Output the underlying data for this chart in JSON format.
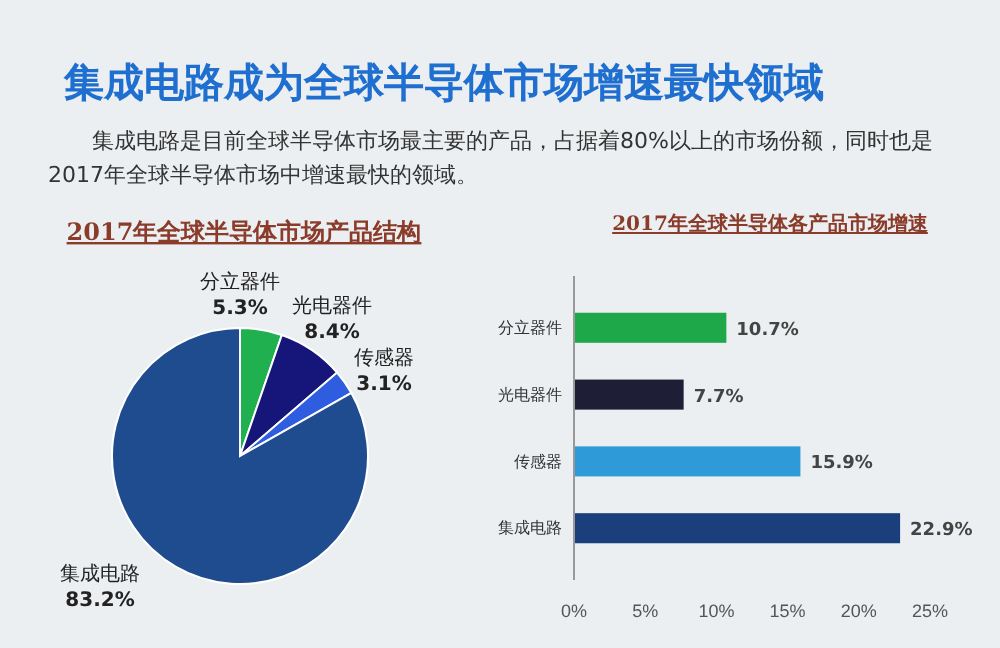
{
  "chart_data": [
    {
      "type": "other",
      "title": "集成电路成为全球半导体市场增速最快领域",
      "annotations": [
        "集成电路是目前全球半导体市场最主要的产品，占据着80%以上的市场份额，同时也是2017年全球半导体市场中增速最快的领域。"
      ]
    },
    {
      "type": "pie",
      "title": "2017年全球半导体市场产品结构",
      "categories": [
        "分立器件",
        "光电器件",
        "传感器",
        "集成电路"
      ],
      "values": [
        5.3,
        8.4,
        3.1,
        83.2
      ],
      "colors": [
        "#21b04f",
        "#16167a",
        "#2f5de0",
        "#1f4c8e"
      ],
      "value_labels": [
        "5.3%",
        "8.4%",
        "3.1%",
        "83.2%"
      ]
    },
    {
      "type": "bar",
      "orientation": "horizontal",
      "title": "2017年全球半导体各产品市场增速",
      "categories": [
        "分立器件",
        "光电器件",
        "传感器",
        "集成电路"
      ],
      "values": [
        10.7,
        7.7,
        15.9,
        22.9
      ],
      "colors": [
        "#1ea84a",
        "#1e1e36",
        "#2e9bd8",
        "#1b3f7c"
      ],
      "xlim": [
        0,
        25
      ],
      "xticks": [
        {
          "value": 0,
          "label": "0%"
        },
        {
          "value": 5,
          "label": "5%"
        },
        {
          "value": 10,
          "label": "10%"
        },
        {
          "value": 15,
          "label": "15%"
        },
        {
          "value": 20,
          "label": "20%"
        },
        {
          "value": 25,
          "label": "25%"
        }
      ],
      "value_labels": [
        "10.7%",
        "7.7%",
        "15.9%",
        "22.9%"
      ]
    }
  ]
}
